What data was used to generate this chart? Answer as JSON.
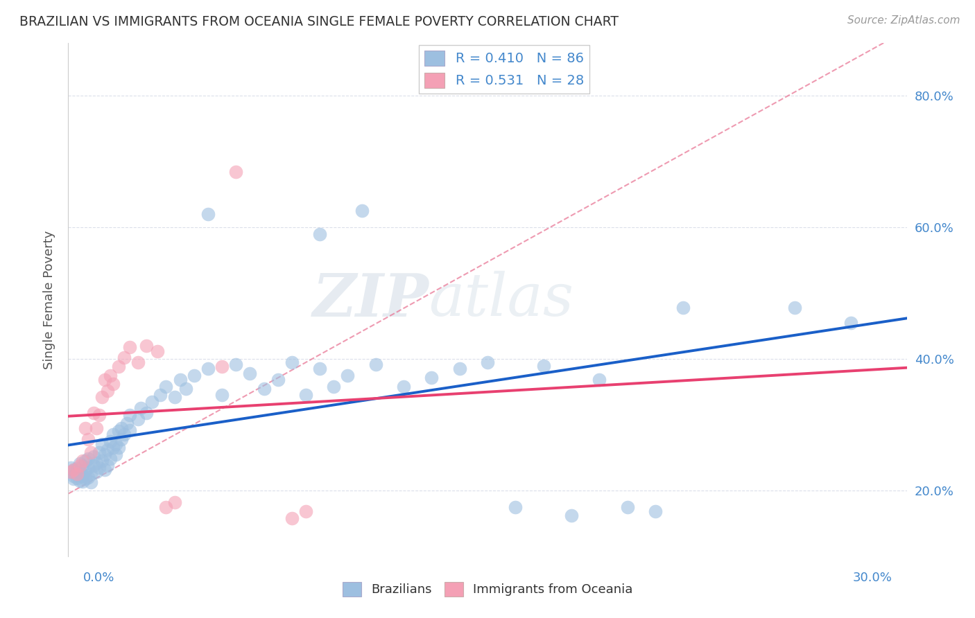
{
  "title": "BRAZILIAN VS IMMIGRANTS FROM OCEANIA SINGLE FEMALE POVERTY CORRELATION CHART",
  "source": "Source: ZipAtlas.com",
  "ylabel": "Single Female Poverty",
  "xlim": [
    0.0,
    0.3
  ],
  "ylim": [
    0.1,
    0.88
  ],
  "legend_r_blue": "R = 0.410",
  "legend_n_blue": "N = 86",
  "legend_r_pink": "R = 0.531",
  "legend_n_pink": "N = 28",
  "blue_color": "#9dbfe0",
  "pink_color": "#f4a0b5",
  "blue_line_color": "#1a5fc8",
  "pink_line_color": "#e84070",
  "dashed_line_color": "#e87090",
  "watermark_color": "#d0dce8",
  "background_color": "#ffffff",
  "grid_color": "#d8dce8",
  "title_color": "#333333",
  "source_color": "#999999",
  "axis_label_color": "#555555",
  "tick_label_color": "#4488cc",
  "blue_scatter": [
    [
      0.001,
      0.235
    ],
    [
      0.001,
      0.228
    ],
    [
      0.002,
      0.222
    ],
    [
      0.002,
      0.218
    ],
    [
      0.002,
      0.231
    ],
    [
      0.003,
      0.225
    ],
    [
      0.003,
      0.219
    ],
    [
      0.003,
      0.234
    ],
    [
      0.004,
      0.228
    ],
    [
      0.004,
      0.215
    ],
    [
      0.004,
      0.241
    ],
    [
      0.005,
      0.222
    ],
    [
      0.005,
      0.238
    ],
    [
      0.005,
      0.214
    ],
    [
      0.006,
      0.23
    ],
    [
      0.006,
      0.245
    ],
    [
      0.006,
      0.218
    ],
    [
      0.007,
      0.235
    ],
    [
      0.007,
      0.22
    ],
    [
      0.007,
      0.248
    ],
    [
      0.008,
      0.225
    ],
    [
      0.008,
      0.212
    ],
    [
      0.009,
      0.238
    ],
    [
      0.009,
      0.252
    ],
    [
      0.01,
      0.242
    ],
    [
      0.01,
      0.228
    ],
    [
      0.011,
      0.258
    ],
    [
      0.011,
      0.235
    ],
    [
      0.012,
      0.245
    ],
    [
      0.012,
      0.27
    ],
    [
      0.013,
      0.255
    ],
    [
      0.013,
      0.232
    ],
    [
      0.014,
      0.262
    ],
    [
      0.014,
      0.238
    ],
    [
      0.015,
      0.275
    ],
    [
      0.015,
      0.248
    ],
    [
      0.016,
      0.265
    ],
    [
      0.016,
      0.285
    ],
    [
      0.017,
      0.27
    ],
    [
      0.017,
      0.255
    ],
    [
      0.018,
      0.29
    ],
    [
      0.018,
      0.265
    ],
    [
      0.019,
      0.278
    ],
    [
      0.019,
      0.295
    ],
    [
      0.02,
      0.285
    ],
    [
      0.021,
      0.302
    ],
    [
      0.022,
      0.292
    ],
    [
      0.022,
      0.315
    ],
    [
      0.025,
      0.308
    ],
    [
      0.026,
      0.325
    ],
    [
      0.028,
      0.318
    ],
    [
      0.03,
      0.335
    ],
    [
      0.033,
      0.345
    ],
    [
      0.035,
      0.358
    ],
    [
      0.038,
      0.342
    ],
    [
      0.04,
      0.368
    ],
    [
      0.042,
      0.355
    ],
    [
      0.045,
      0.375
    ],
    [
      0.05,
      0.385
    ],
    [
      0.055,
      0.345
    ],
    [
      0.06,
      0.392
    ],
    [
      0.065,
      0.378
    ],
    [
      0.07,
      0.355
    ],
    [
      0.075,
      0.368
    ],
    [
      0.08,
      0.395
    ],
    [
      0.085,
      0.345
    ],
    [
      0.09,
      0.385
    ],
    [
      0.095,
      0.358
    ],
    [
      0.1,
      0.375
    ],
    [
      0.11,
      0.392
    ],
    [
      0.12,
      0.358
    ],
    [
      0.13,
      0.372
    ],
    [
      0.14,
      0.385
    ],
    [
      0.15,
      0.395
    ],
    [
      0.16,
      0.175
    ],
    [
      0.17,
      0.39
    ],
    [
      0.18,
      0.162
    ],
    [
      0.19,
      0.368
    ],
    [
      0.2,
      0.175
    ],
    [
      0.21,
      0.168
    ],
    [
      0.05,
      0.62
    ],
    [
      0.09,
      0.59
    ],
    [
      0.105,
      0.625
    ],
    [
      0.22,
      0.478
    ],
    [
      0.26,
      0.478
    ],
    [
      0.28,
      0.455
    ]
  ],
  "pink_scatter": [
    [
      0.001,
      0.228
    ],
    [
      0.002,
      0.232
    ],
    [
      0.003,
      0.225
    ],
    [
      0.004,
      0.238
    ],
    [
      0.005,
      0.245
    ],
    [
      0.006,
      0.295
    ],
    [
      0.007,
      0.278
    ],
    [
      0.008,
      0.258
    ],
    [
      0.009,
      0.318
    ],
    [
      0.01,
      0.295
    ],
    [
      0.011,
      0.315
    ],
    [
      0.012,
      0.342
    ],
    [
      0.013,
      0.368
    ],
    [
      0.014,
      0.352
    ],
    [
      0.015,
      0.375
    ],
    [
      0.016,
      0.362
    ],
    [
      0.018,
      0.388
    ],
    [
      0.02,
      0.402
    ],
    [
      0.022,
      0.418
    ],
    [
      0.025,
      0.395
    ],
    [
      0.028,
      0.42
    ],
    [
      0.032,
      0.412
    ],
    [
      0.035,
      0.175
    ],
    [
      0.038,
      0.182
    ],
    [
      0.055,
      0.388
    ],
    [
      0.08,
      0.158
    ],
    [
      0.085,
      0.168
    ],
    [
      0.06,
      0.685
    ]
  ]
}
